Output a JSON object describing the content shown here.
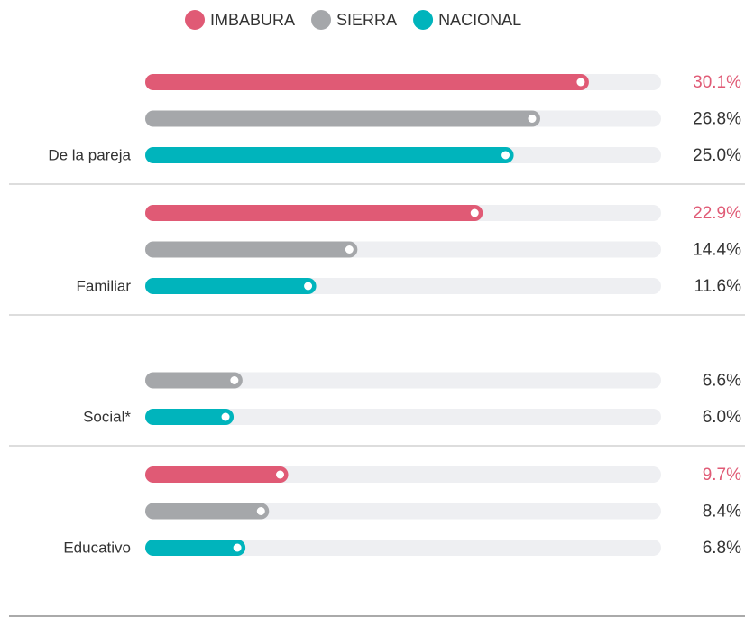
{
  "chart_data": {
    "type": "bar",
    "orientation": "horizontal",
    "categories": [
      "De la pareja",
      "Familiar",
      "Social*",
      "Educativo"
    ],
    "series": [
      {
        "name": "IMBABURA",
        "color": "#e05a75",
        "values": [
          30.1,
          22.9,
          null,
          9.7
        ],
        "value_labels": [
          "30.1%",
          "22.9%",
          null,
          "9.7%"
        ]
      },
      {
        "name": "SIERRA",
        "color": "#a5a7aa",
        "values": [
          26.8,
          14.4,
          6.6,
          8.4
        ],
        "value_labels": [
          "26.8%",
          "14.4%",
          "6.6%",
          "8.4%"
        ]
      },
      {
        "name": "NACIONAL",
        "color": "#00b4bc",
        "values": [
          25.0,
          11.6,
          6.0,
          6.8
        ],
        "value_labels": [
          "25.0%",
          "11.6%",
          "6.0%",
          "6.8%"
        ]
      }
    ],
    "xlim": [
      0,
      35
    ],
    "xticks": [
      {
        "value": 0,
        "label": "0%"
      },
      {
        "value": 5,
        "label": "5%"
      },
      {
        "value": 10,
        "label": "10%"
      },
      {
        "value": 15,
        "label": "15%"
      },
      {
        "value": 20,
        "label": "20%"
      },
      {
        "value": 25,
        "label": "25%"
      },
      {
        "value": 30,
        "label": "30%"
      },
      {
        "value": 35,
        "label": "35%"
      }
    ],
    "grid": false,
    "legend": "top"
  }
}
